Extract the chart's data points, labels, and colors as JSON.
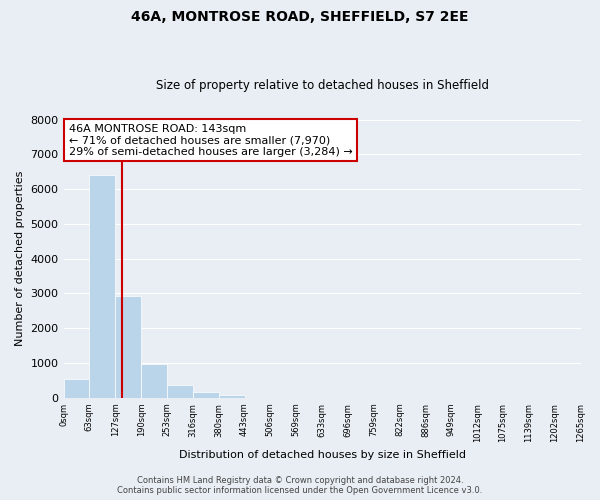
{
  "title": "46A, MONTROSE ROAD, SHEFFIELD, S7 2EE",
  "subtitle": "Size of property relative to detached houses in Sheffield",
  "xlabel": "Distribution of detached houses by size in Sheffield",
  "ylabel": "Number of detached properties",
  "bar_values": [
    550,
    6400,
    2940,
    970,
    380,
    160,
    80,
    0,
    0,
    0,
    0,
    0,
    0,
    0,
    0,
    0,
    0,
    0,
    0,
    0
  ],
  "bin_edges": [
    0,
    63,
    127,
    190,
    253,
    316,
    380,
    443,
    506,
    569,
    633,
    696,
    759,
    822,
    886,
    949,
    1012,
    1075,
    1139,
    1202,
    1265
  ],
  "tick_labels": [
    "0sqm",
    "63sqm",
    "127sqm",
    "190sqm",
    "253sqm",
    "316sqm",
    "380sqm",
    "443sqm",
    "506sqm",
    "569sqm",
    "633sqm",
    "696sqm",
    "759sqm",
    "822sqm",
    "886sqm",
    "949sqm",
    "1012sqm",
    "1075sqm",
    "1139sqm",
    "1202sqm",
    "1265sqm"
  ],
  "bar_color": "#bad4ea",
  "property_line_x": 143,
  "ylim": [
    0,
    8000
  ],
  "yticks": [
    0,
    1000,
    2000,
    3000,
    4000,
    5000,
    6000,
    7000,
    8000
  ],
  "annotation_title": "46A MONTROSE ROAD: 143sqm",
  "annotation_line1": "← 71% of detached houses are smaller (7,970)",
  "annotation_line2": "29% of semi-detached houses are larger (3,284) →",
  "footer_line1": "Contains HM Land Registry data © Crown copyright and database right 2024.",
  "footer_line2": "Contains public sector information licensed under the Open Government Licence v3.0.",
  "bg_color": "#e8eef4",
  "grid_color": "#ffffff",
  "annotation_box_color": "#ffffff",
  "annotation_box_edge": "#cc0000",
  "vline_color": "#cc0000"
}
